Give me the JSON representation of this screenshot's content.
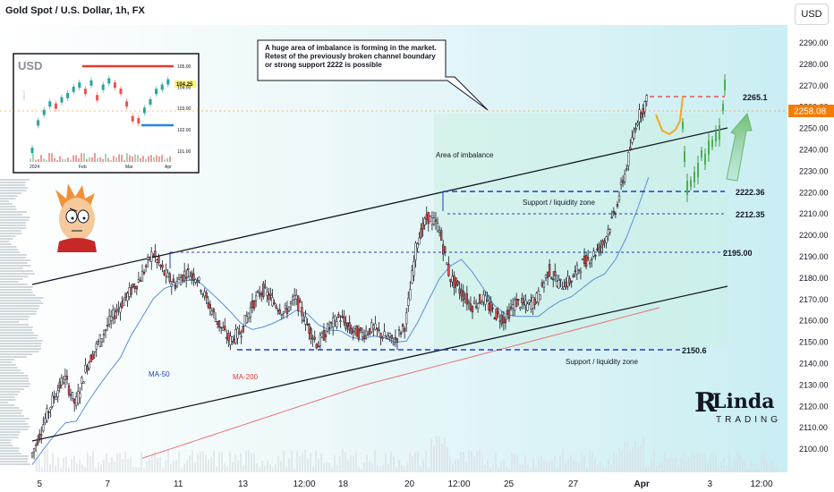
{
  "header": {
    "title": "Gold Spot / U.S. Dollar, 1h, FX",
    "currency_button": "USD"
  },
  "price_axis": {
    "ticks": [
      "2290.00",
      "2280.00",
      "2270.00",
      "2260.00",
      "2250.00",
      "2240.00",
      "2230.00",
      "2220.00",
      "2210.00",
      "2200.00",
      "2190.00",
      "2180.00",
      "2170.00",
      "2160.00",
      "2150.00",
      "2140.00",
      "2130.00",
      "2120.00",
      "2110.00",
      "2100.00"
    ],
    "current_price": "2258.08",
    "current_price_color": "#f57c00"
  },
  "time_axis": {
    "labels": [
      "5",
      "7",
      "11",
      "13",
      "12:00",
      "18",
      "20",
      "12:00",
      "25",
      "27",
      "Apr",
      "3",
      "12:00"
    ]
  },
  "annotation": "A huge area of imbalance is forming in the market.\nRetest of the previously broken channel boundary\nor strong support 2222 is possible",
  "labels": {
    "area_of_imbalance": "Area of imbalance",
    "support_zone_upper": "Support / liquidity zone",
    "support_zone_lower": "Support / liquidity zone",
    "ma50": "MA-50",
    "ma200": "MA-200"
  },
  "levels": [
    {
      "value": "2265.1",
      "color": "#e53935",
      "style": "dashed"
    },
    {
      "value": "2222.36",
      "color": "#1e3fbf",
      "style": "dashed"
    },
    {
      "value": "2212.35",
      "color": "#1e3fbf",
      "style": "dotted"
    },
    {
      "value": "2195.00",
      "color": "#1e3fbf",
      "style": "dotted"
    },
    {
      "value": "2150.6",
      "color": "#1e3fbf",
      "style": "dashed"
    }
  ],
  "inset": {
    "title": "USD",
    "price_labels": [
      "105.00",
      "104.00",
      "103.00",
      "102.00",
      "101.00"
    ],
    "current_value": "104.25",
    "time_labels": [
      "2024",
      "Feb",
      "Mar",
      "Apr"
    ],
    "side_text": "DAILY"
  },
  "watermark": {
    "brand": "Linda",
    "sub": "TRADING"
  },
  "colors": {
    "bull": "#26a69a",
    "bear": "#ef5350",
    "candle": "#131722",
    "channel": "#131722",
    "ma50": "#5a8fd8",
    "ma200": "#e57373"
  },
  "chart_data": {
    "type": "line",
    "title": "Gold Spot / U.S. Dollar, 1h, FX",
    "ylim": [
      2097,
      2297
    ],
    "series": [
      {
        "name": "MA-50"
      },
      {
        "name": "MA-200"
      }
    ],
    "close_path": [
      [
        0,
        2098
      ],
      [
        1,
        2112
      ],
      [
        2,
        2125
      ],
      [
        3,
        2135
      ],
      [
        4,
        2122
      ],
      [
        5,
        2140
      ],
      [
        6,
        2150
      ],
      [
        7,
        2160
      ],
      [
        8,
        2168
      ],
      [
        9,
        2175
      ],
      [
        10,
        2182
      ],
      [
        11,
        2193
      ],
      [
        12,
        2184
      ],
      [
        13,
        2178
      ],
      [
        14,
        2184
      ],
      [
        15,
        2182
      ],
      [
        16,
        2170
      ],
      [
        17,
        2160
      ],
      [
        18,
        2152
      ],
      [
        19,
        2156
      ],
      [
        20,
        2168
      ],
      [
        21,
        2176
      ],
      [
        22,
        2170
      ],
      [
        23,
        2165
      ],
      [
        24,
        2172
      ],
      [
        25,
        2160
      ],
      [
        26,
        2150
      ],
      [
        27,
        2158
      ],
      [
        28,
        2163
      ],
      [
        29,
        2157
      ],
      [
        30,
        2155
      ],
      [
        31,
        2158
      ],
      [
        32,
        2154
      ],
      [
        33,
        2152
      ],
      [
        34,
        2160
      ],
      [
        35,
        2198
      ],
      [
        36,
        2210
      ],
      [
        37,
        2205
      ],
      [
        38,
        2182
      ],
      [
        39,
        2175
      ],
      [
        40,
        2168
      ],
      [
        41,
        2172
      ],
      [
        42,
        2165
      ],
      [
        43,
        2162
      ],
      [
        44,
        2170
      ],
      [
        45,
        2168
      ],
      [
        46,
        2172
      ],
      [
        47,
        2185
      ],
      [
        48,
        2178
      ],
      [
        49,
        2180
      ],
      [
        50,
        2188
      ],
      [
        51,
        2192
      ],
      [
        52,
        2198
      ],
      [
        53,
        2212
      ],
      [
        54,
        2232
      ],
      [
        55,
        2255
      ],
      [
        56,
        2265
      ]
    ],
    "channel": {
      "upper": [
        [
          0,
          2180
        ],
        [
          58,
          2252
        ]
      ],
      "lower": [
        [
          0,
          2110
        ],
        [
          58,
          2180
        ]
      ]
    },
    "scenarios": [
      {
        "name": "retest channel",
        "color": "#f5a623",
        "points": [
          [
            56,
            2262
          ],
          [
            57,
            2252
          ],
          [
            58,
            2248
          ],
          [
            59,
            2263
          ]
        ]
      },
      {
        "name": "support 2222",
        "color": "#4caf50",
        "points": [
          [
            58,
            2252
          ],
          [
            59,
            2222
          ],
          [
            61,
            2226
          ],
          [
            63,
            2245
          ],
          [
            64,
            2270
          ]
        ]
      }
    ]
  }
}
